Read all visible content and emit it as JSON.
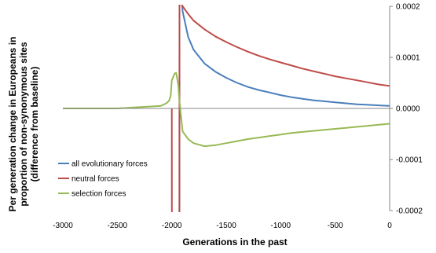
{
  "chart_data": {
    "type": "line",
    "xlabel": "Generations in the past",
    "ylabel_lines": [
      "Per generation change in Europeans in",
      "proportion of non-synonymous sites",
      "(difference from baseline)"
    ],
    "xlim": [
      -3000,
      0
    ],
    "ylim": [
      -0.0002,
      0.0002
    ],
    "x_ticks": [
      -3000,
      -2500,
      -2000,
      -1500,
      -1000,
      -500,
      0
    ],
    "x_tick_labels": [
      "-3000",
      "-2500",
      "-2000",
      "-1500",
      "-1000",
      "-500",
      "0"
    ],
    "y_ticks": [
      0.0002,
      0.0001,
      0.0,
      -0.0001,
      -0.0002
    ],
    "y_tick_labels": [
      "0.0002",
      "0.0001",
      "0.0000",
      "-0.0001",
      "-0.0002"
    ],
    "y_axis_side": "right",
    "grid": false,
    "legend_position": "lower-left",
    "series": [
      {
        "name": "all evolutionary forces",
        "color": "#4a7ebb",
        "x": [
          -1930,
          -1929,
          -1900,
          -1850,
          -1800,
          -1700,
          -1600,
          -1500,
          -1400,
          -1300,
          -1200,
          -1100,
          -1000,
          -900,
          -800,
          -700,
          -600,
          -500,
          -400,
          -300,
          -200,
          -100,
          0
        ],
        "y": [
          -0.00022,
          0.00026,
          0.00019,
          0.00014,
          0.000115,
          8.8e-05,
          7.2e-05,
          6e-05,
          5e-05,
          4.2e-05,
          3.6e-05,
          3.1e-05,
          2.6e-05,
          2.2e-05,
          1.9e-05,
          1.6e-05,
          1.4e-05,
          1.2e-05,
          1e-05,
          8e-06,
          7e-06,
          6e-06,
          5e-06
        ]
      },
      {
        "name": "neutral forces",
        "color": "#be4b48",
        "x": [
          -2000,
          -1999,
          -1980,
          -1960,
          -1945,
          -1930,
          -1929,
          -1900,
          -1850,
          -1800,
          -1700,
          -1600,
          -1500,
          -1400,
          -1300,
          -1200,
          -1100,
          -1000,
          -900,
          -800,
          -700,
          -600,
          -500,
          -400,
          -300,
          -200,
          -100,
          0
        ],
        "y": [
          0.0,
          -0.00022,
          -0.00022,
          -0.00022,
          -0.00022,
          -0.00022,
          0.000215,
          0.0002,
          0.000185,
          0.000172,
          0.000155,
          0.000141,
          0.00013,
          0.00012,
          0.000111,
          0.000103,
          9.6e-05,
          9e-05,
          8.4e-05,
          7.8e-05,
          7.3e-05,
          6.8e-05,
          6.3e-05,
          5.9e-05,
          5.5e-05,
          5.1e-05,
          4.7e-05,
          4.4e-05
        ]
      },
      {
        "name": "selection forces",
        "color": "#98b954",
        "x": [
          -3000,
          -2500,
          -2100,
          -2050,
          -2025,
          -2010,
          -2000,
          -1990,
          -1975,
          -1960,
          -1950,
          -1940,
          -1930,
          -1900,
          -1850,
          -1800,
          -1700,
          -1600,
          -1500,
          -1400,
          -1300,
          -1200,
          -1100,
          -1000,
          -900,
          -800,
          -700,
          -600,
          -500,
          -400,
          -300,
          -200,
          -100,
          0
        ],
        "y": [
          0.0,
          0.0,
          5e-06,
          1e-05,
          1.5e-05,
          2.5e-05,
          5.5e-05,
          6e-05,
          6.8e-05,
          7e-05,
          5.8e-05,
          4.5e-05,
          1.5e-05,
          -4.5e-05,
          -6e-05,
          -6.8e-05,
          -7.4e-05,
          -7.2e-05,
          -6.8e-05,
          -6.4e-05,
          -6e-05,
          -5.7e-05,
          -5.4e-05,
          -5.1e-05,
          -4.8e-05,
          -4.6e-05,
          -4.4e-05,
          -4.2e-05,
          -4e-05,
          -3.8e-05,
          -3.6e-05,
          -3.4e-05,
          -3.2e-05,
          -3e-05
        ]
      }
    ]
  }
}
